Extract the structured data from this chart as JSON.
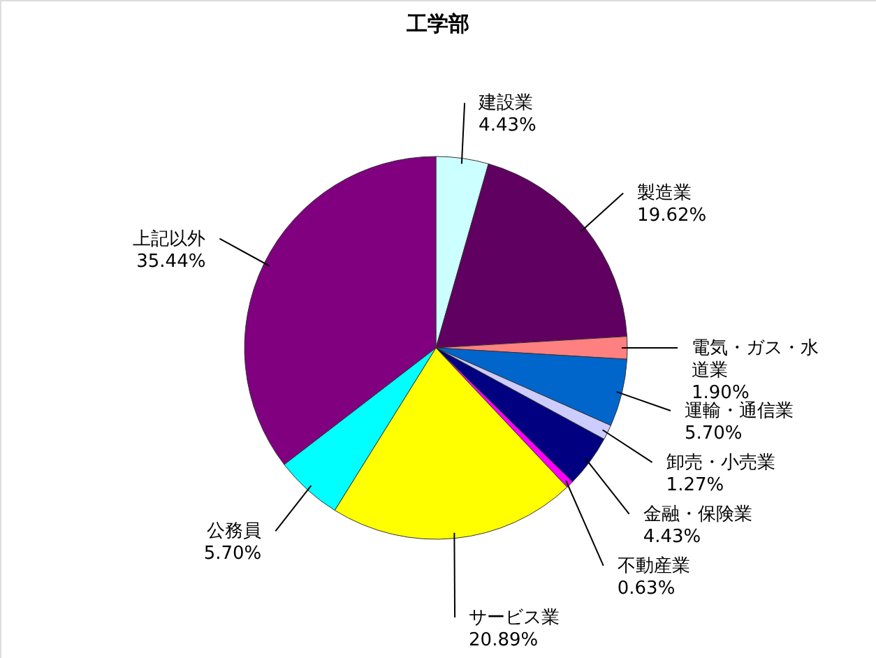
{
  "chart_data": {
    "type": "pie",
    "title": "工学部",
    "categories": [
      "建設業",
      "製造業",
      "電気・ガス・水道業",
      "運輸・通信業",
      "卸売・小売業",
      "金融・保険業",
      "不動産業",
      "サービス業",
      "公務員",
      "上記以外"
    ],
    "values": [
      4.43,
      19.62,
      1.9,
      5.7,
      1.27,
      4.43,
      0.63,
      20.89,
      5.7,
      35.44
    ],
    "colors": [
      "#ccffff",
      "#600060",
      "#ff8080",
      "#0066cc",
      "#ccccff",
      "#000080",
      "#ff00ff",
      "#ffff00",
      "#00ffff",
      "#800080"
    ],
    "value_labels": [
      "4.43%",
      "19.62%",
      "1.90%",
      "5.70%",
      "1.27%",
      "4.43%",
      "0.63%",
      "20.89%",
      "5.70%",
      "35.44%"
    ]
  }
}
